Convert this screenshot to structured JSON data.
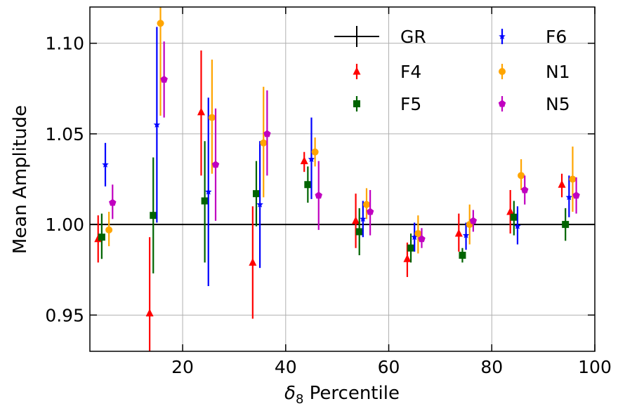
{
  "chart_data": {
    "type": "scatter",
    "xlabel": "δ₈ Percentile",
    "xlabel_main": "δ",
    "xlabel_sub": "8",
    "xlabel_rest": " Percentile",
    "ylabel": "Mean Amplitude",
    "xlim": [
      2,
      100
    ],
    "ylim": [
      0.93,
      1.12
    ],
    "x_ticks": [
      20,
      40,
      60,
      80,
      100
    ],
    "y_ticks": [
      0.95,
      1.0,
      1.05,
      1.1
    ],
    "x_tick_labels": [
      "20",
      "40",
      "60",
      "80",
      "100"
    ],
    "y_tick_labels": [
      "0.95",
      "1.00",
      "1.05",
      "1.10"
    ],
    "grid": true,
    "legend_position": "top-right",
    "reference_line": {
      "name": "GR",
      "y": 1.0,
      "color": "#000000"
    },
    "series": [
      {
        "name": "F4",
        "color": "#ff0000",
        "marker": "triangle",
        "points": [
          {
            "x": 3.6,
            "y": 0.992,
            "lo": 0.979,
            "hi": 1.005
          },
          {
            "x": 13.6,
            "y": 0.951,
            "lo": 0.926,
            "hi": 0.993
          },
          {
            "x": 23.6,
            "y": 1.062,
            "lo": 1.027,
            "hi": 1.096
          },
          {
            "x": 33.6,
            "y": 0.979,
            "lo": 0.948,
            "hi": 1.01
          },
          {
            "x": 43.6,
            "y": 1.035,
            "lo": 1.029,
            "hi": 1.04
          },
          {
            "x": 53.6,
            "y": 1.002,
            "lo": 0.987,
            "hi": 1.017
          },
          {
            "x": 63.6,
            "y": 0.981,
            "lo": 0.971,
            "hi": 0.99
          },
          {
            "x": 73.6,
            "y": 0.995,
            "lo": 0.985,
            "hi": 1.006
          },
          {
            "x": 83.6,
            "y": 1.007,
            "lo": 0.995,
            "hi": 1.019
          },
          {
            "x": 93.6,
            "y": 1.022,
            "lo": 1.015,
            "hi": 1.028
          }
        ]
      },
      {
        "name": "F5",
        "color": "#006400",
        "marker": "square",
        "points": [
          {
            "x": 4.3,
            "y": 0.993,
            "lo": 0.981,
            "hi": 1.006
          },
          {
            "x": 14.3,
            "y": 1.005,
            "lo": 0.973,
            "hi": 1.037
          },
          {
            "x": 24.3,
            "y": 1.013,
            "lo": 0.979,
            "hi": 1.046
          },
          {
            "x": 34.3,
            "y": 1.017,
            "lo": 0.999,
            "hi": 1.035
          },
          {
            "x": 44.3,
            "y": 1.022,
            "lo": 1.012,
            "hi": 1.032
          },
          {
            "x": 54.3,
            "y": 0.996,
            "lo": 0.983,
            "hi": 1.009
          },
          {
            "x": 64.3,
            "y": 0.987,
            "lo": 0.979,
            "hi": 0.995
          },
          {
            "x": 74.3,
            "y": 0.983,
            "lo": 0.979,
            "hi": 0.987
          },
          {
            "x": 84.3,
            "y": 1.004,
            "lo": 0.994,
            "hi": 1.013
          },
          {
            "x": 94.3,
            "y": 1.0,
            "lo": 0.991,
            "hi": 1.009
          }
        ]
      },
      {
        "name": "F6",
        "color": "#0000ff",
        "marker": "star",
        "points": [
          {
            "x": 5.0,
            "y": 1.033,
            "lo": 1.021,
            "hi": 1.045
          },
          {
            "x": 15.0,
            "y": 1.055,
            "lo": 1.001,
            "hi": 1.109
          },
          {
            "x": 25.0,
            "y": 1.018,
            "lo": 0.966,
            "hi": 1.07
          },
          {
            "x": 35.0,
            "y": 1.011,
            "lo": 0.976,
            "hi": 1.046
          },
          {
            "x": 45.0,
            "y": 1.036,
            "lo": 1.014,
            "hi": 1.059
          },
          {
            "x": 55.0,
            "y": 1.003,
            "lo": 0.993,
            "hi": 1.013
          },
          {
            "x": 65.0,
            "y": 0.993,
            "lo": 0.985,
            "hi": 1.001
          },
          {
            "x": 75.0,
            "y": 0.994,
            "lo": 0.986,
            "hi": 1.001
          },
          {
            "x": 85.0,
            "y": 0.999,
            "lo": 0.989,
            "hi": 1.01
          },
          {
            "x": 95.0,
            "y": 1.015,
            "lo": 1.004,
            "hi": 1.027
          }
        ]
      },
      {
        "name": "N1",
        "color": "#ffa500",
        "marker": "circle",
        "points": [
          {
            "x": 5.7,
            "y": 0.997,
            "lo": 0.988,
            "hi": 1.007
          },
          {
            "x": 15.7,
            "y": 1.111,
            "lo": 1.06,
            "hi": 1.162
          },
          {
            "x": 25.7,
            "y": 1.059,
            "lo": 1.028,
            "hi": 1.091
          },
          {
            "x": 35.7,
            "y": 1.045,
            "lo": 1.015,
            "hi": 1.076
          },
          {
            "x": 45.7,
            "y": 1.04,
            "lo": 1.032,
            "hi": 1.048
          },
          {
            "x": 55.7,
            "y": 1.011,
            "lo": 1.003,
            "hi": 1.02
          },
          {
            "x": 65.7,
            "y": 0.995,
            "lo": 0.984,
            "hi": 1.005
          },
          {
            "x": 75.7,
            "y": 1.0,
            "lo": 0.989,
            "hi": 1.011
          },
          {
            "x": 85.7,
            "y": 1.027,
            "lo": 1.019,
            "hi": 1.036
          },
          {
            "x": 95.7,
            "y": 1.025,
            "lo": 1.007,
            "hi": 1.043
          }
        ]
      },
      {
        "name": "N5",
        "color": "#c000c0",
        "marker": "pentagon",
        "points": [
          {
            "x": 6.4,
            "y": 1.012,
            "lo": 1.003,
            "hi": 1.022
          },
          {
            "x": 16.4,
            "y": 1.08,
            "lo": 1.059,
            "hi": 1.101
          },
          {
            "x": 26.4,
            "y": 1.033,
            "lo": 1.002,
            "hi": 1.064
          },
          {
            "x": 36.4,
            "y": 1.05,
            "lo": 1.027,
            "hi": 1.074
          },
          {
            "x": 46.4,
            "y": 1.016,
            "lo": 0.997,
            "hi": 1.035
          },
          {
            "x": 56.4,
            "y": 1.007,
            "lo": 0.994,
            "hi": 1.019
          },
          {
            "x": 66.4,
            "y": 0.992,
            "lo": 0.987,
            "hi": 0.998
          },
          {
            "x": 76.4,
            "y": 1.002,
            "lo": 0.996,
            "hi": 1.008
          },
          {
            "x": 86.4,
            "y": 1.019,
            "lo": 1.011,
            "hi": 1.027
          },
          {
            "x": 96.4,
            "y": 1.016,
            "lo": 1.006,
            "hi": 1.026
          }
        ]
      }
    ],
    "legend": [
      {
        "name": "GR",
        "color": "#000000",
        "marker": "line"
      },
      {
        "name": "F6",
        "color": "#0000ff",
        "marker": "star"
      },
      {
        "name": "F4",
        "color": "#ff0000",
        "marker": "triangle"
      },
      {
        "name": "N1",
        "color": "#ffa500",
        "marker": "circle"
      },
      {
        "name": "F5",
        "color": "#006400",
        "marker": "square"
      },
      {
        "name": "N5",
        "color": "#c000c0",
        "marker": "pentagon"
      }
    ]
  }
}
